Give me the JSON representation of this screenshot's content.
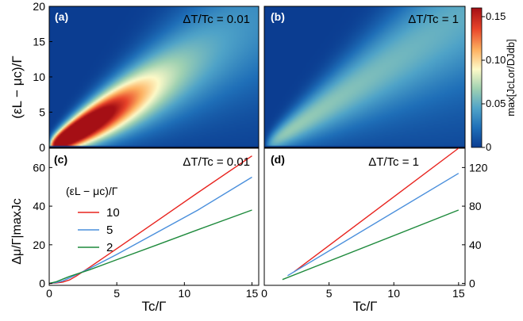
{
  "colors": {
    "red": "#e8231e",
    "blue": "#4a8fdc",
    "green": "#1e8a3c",
    "cmap": [
      "#0b3d91",
      "#1f6fb8",
      "#4fa3c8",
      "#9fd1b2",
      "#fdfac8",
      "#fdb060",
      "#e8452a",
      "#a50f15"
    ]
  },
  "chart_data": [
    {
      "panel": "(a)",
      "type": "heatmap",
      "annotation": "ΔT/Tc = 0.01",
      "ylabel": "(εL − μc)/Γ",
      "yticks": [
        "0",
        "5",
        "10",
        "15",
        "20"
      ],
      "ylim": [
        0,
        20
      ],
      "xlim": [
        0,
        15.5
      ],
      "peak": {
        "x": 1.0,
        "y": 2.0,
        "value": 0.16
      }
    },
    {
      "panel": "(b)",
      "type": "heatmap",
      "annotation": "ΔT/Tc = 1",
      "ylim": [
        0,
        20
      ],
      "xlim": [
        0,
        15.5
      ],
      "peak": {
        "x": 1.0,
        "y": 1.5,
        "value": 0.06
      }
    },
    {
      "panel": "colorbar",
      "type": "heatmap",
      "label": "max[JcLor/DJdb]",
      "ticks": [
        "0",
        "0.05",
        "0.10",
        "0.15"
      ],
      "range": [
        0,
        0.16
      ]
    },
    {
      "panel": "(c)",
      "type": "line",
      "annotation": "ΔT/Tc = 0.01",
      "xlabel": "Tc/Γ",
      "ylabel": "Δμ/Γ|maxJc",
      "xticks": [
        "0",
        "5",
        "10",
        "15"
      ],
      "yticks": [
        "0",
        "20",
        "40",
        "60"
      ],
      "xlim": [
        0,
        15.5
      ],
      "ylim": [
        -1,
        70
      ],
      "legend_title": "(εL − μc)/Γ",
      "series": [
        {
          "name": "10",
          "color": "red",
          "x": [
            0,
            0.5,
            1,
            1.5,
            2,
            3,
            5,
            8,
            11,
            15
          ],
          "y": [
            0,
            0.2,
            0.7,
            1.8,
            3.8,
            8.4,
            18,
            32.5,
            47,
            66
          ]
        },
        {
          "name": "5",
          "color": "blue",
          "x": [
            0,
            0.5,
            1,
            1.5,
            2,
            3,
            5,
            8,
            11,
            15
          ],
          "y": [
            0,
            0.4,
            1.3,
            2.8,
            4.5,
            7.8,
            15,
            26.5,
            38,
            55
          ]
        },
        {
          "name": "2",
          "color": "green",
          "x": [
            0,
            0.5,
            1,
            1.5,
            2,
            3,
            5,
            8,
            11,
            15
          ],
          "y": [
            0,
            0.8,
            2.2,
            3.6,
            4.8,
            7.1,
            12.3,
            20,
            27.8,
            38
          ]
        }
      ]
    },
    {
      "panel": "(d)",
      "type": "line",
      "annotation": "ΔT/Tc = 1",
      "xlabel": "Tc/Γ",
      "xticks": [
        "0",
        "5",
        "10",
        "15"
      ],
      "yticks": [
        "0",
        "40",
        "80",
        "120"
      ],
      "xlim": [
        0,
        15.5
      ],
      "ylim": [
        -2,
        140
      ],
      "series": [
        {
          "name": "10",
          "color": "red",
          "x": [
            2.3,
            15
          ],
          "y": [
            12,
            140
          ]
        },
        {
          "name": "5",
          "color": "blue",
          "x": [
            1.8,
            15
          ],
          "y": [
            8,
            114
          ]
        },
        {
          "name": "2",
          "color": "green",
          "x": [
            1.4,
            15
          ],
          "y": [
            4,
            76
          ]
        }
      ]
    }
  ]
}
